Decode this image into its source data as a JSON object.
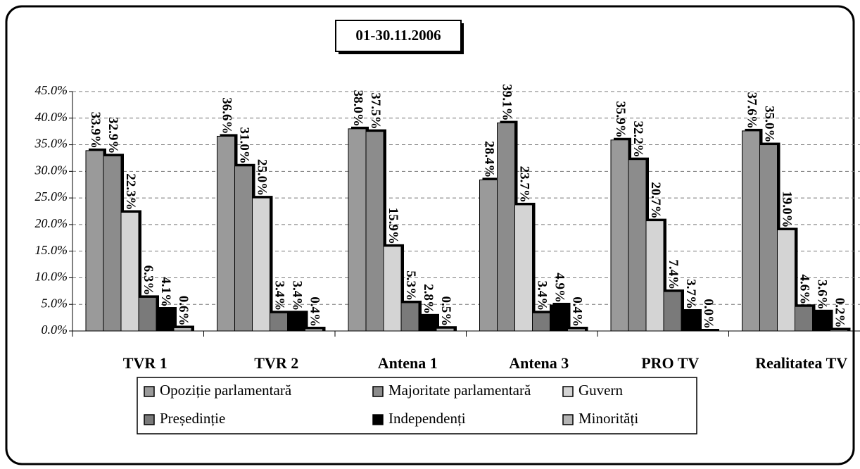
{
  "chart_data": {
    "type": "bar",
    "title": "01-30.11.2006",
    "categories": [
      "TVR 1",
      "TVR 2",
      "Antena 1",
      "Antena 3",
      "PRO TV",
      "Realitatea TV"
    ],
    "series": [
      {
        "name": "Opoziție parlamentară",
        "color": "#9a9a9a",
        "values": [
          33.9,
          36.6,
          38.0,
          28.4,
          35.9,
          37.6
        ],
        "value_labels": [
          "33.9%",
          "36.6%",
          "38.0%",
          "28.4%",
          "35.9%",
          "37.6%"
        ]
      },
      {
        "name": "Majoritate parlamentară",
        "color": "#8c8c8c",
        "values": [
          32.9,
          31.0,
          37.5,
          39.1,
          32.2,
          35.0
        ],
        "value_labels": [
          "32.9%",
          "31.0%",
          "37.5%",
          "39.1%",
          "32.2%",
          "35.0%"
        ]
      },
      {
        "name": "Guvern",
        "color": "#d4d4d4",
        "values": [
          22.3,
          25.0,
          15.9,
          23.7,
          20.7,
          19.0
        ],
        "value_labels": [
          "22.3%",
          "25.0%",
          "15.9%",
          "23.7%",
          "20.7%",
          "19.0%"
        ]
      },
      {
        "name": "Președinție",
        "color": "#7a7a7a",
        "values": [
          6.3,
          3.4,
          5.3,
          3.4,
          7.4,
          4.6
        ],
        "value_labels": [
          "6.3%",
          "3.4%",
          "5.3%",
          "3.4%",
          "7.4%",
          "4.6%"
        ]
      },
      {
        "name": "Independenți",
        "color": "#000000",
        "values": [
          4.1,
          3.4,
          2.8,
          4.9,
          3.7,
          3.6
        ],
        "value_labels": [
          "4.1%",
          "3.4%",
          "2.8%",
          "4.9%",
          "3.7%",
          "3.6%"
        ]
      },
      {
        "name": "Minorități",
        "color": "#b4b4b4",
        "values": [
          0.6,
          0.4,
          0.5,
          0.4,
          0.0,
          0.2
        ],
        "value_labels": [
          "0.6%",
          "0.4%",
          "0.5%",
          "0.4%",
          "0.0%",
          "0.2%"
        ]
      }
    ],
    "ylim": [
      0,
      45
    ],
    "yticks": [
      {
        "value": 0,
        "label": "0.0%"
      },
      {
        "value": 5,
        "label": "5.0%"
      },
      {
        "value": 10,
        "label": "10.0%"
      },
      {
        "value": 15,
        "label": "15.0%"
      },
      {
        "value": 20,
        "label": "20.0%"
      },
      {
        "value": 25,
        "label": "25.0%"
      },
      {
        "value": 30,
        "label": "30.0%"
      },
      {
        "value": 35,
        "label": "35.0%"
      },
      {
        "value": 40,
        "label": "40.0%"
      },
      {
        "value": 45,
        "label": "45.0%"
      }
    ],
    "grid": true
  }
}
